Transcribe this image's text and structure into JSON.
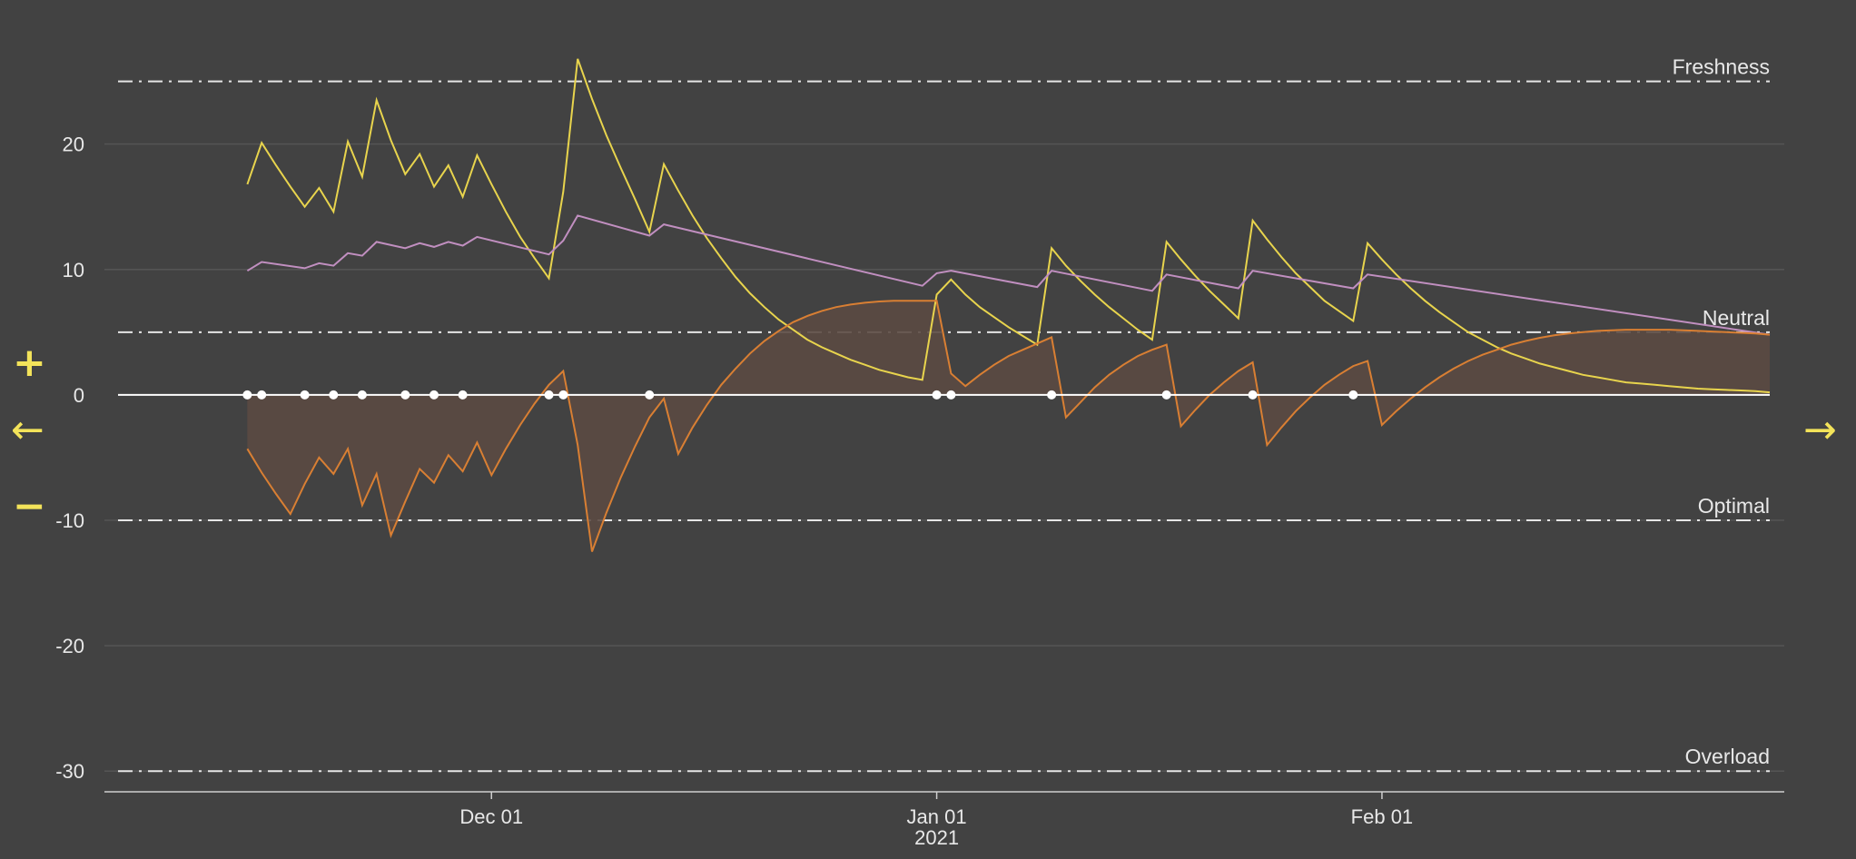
{
  "controls": {
    "zoom_in": "+",
    "zoom_out": "−",
    "previous": "←",
    "next": "→"
  },
  "colors": {
    "background": "#424242",
    "form": "#e8d44d",
    "fitness": "#c18fc0",
    "fatigue": "#d97f33",
    "area_fill": "#5b4a43",
    "baseline": "#ffffff",
    "grid": "#555555",
    "text": "#e8e8e8"
  },
  "chart_data": {
    "type": "line",
    "title": "",
    "xlabel": "",
    "ylabel": "",
    "xlim": [
      "2020-11-05",
      "2021-02-28"
    ],
    "ylim": [
      -31,
      27
    ],
    "yticks": [
      20,
      10,
      0,
      -10,
      -20,
      -30
    ],
    "xticks": [
      {
        "date": "2020-12-01",
        "label": "Dec 01",
        "sub": ""
      },
      {
        "date": "2021-01-01",
        "label": "Jan 01",
        "sub": "2021"
      },
      {
        "date": "2021-02-01",
        "label": "Feb 01",
        "sub": ""
      }
    ],
    "bands": [
      {
        "label": "Freshness",
        "value": 25
      },
      {
        "label": "Neutral",
        "value": 5
      },
      {
        "label": "Optimal",
        "value": -10
      },
      {
        "label": "Overload",
        "value": -30
      }
    ],
    "series": [
      {
        "key": "form",
        "points": [
          [
            "2020-11-14",
            16.8
          ],
          [
            "2020-11-15",
            20.1
          ],
          [
            "2020-11-16",
            18.3
          ],
          [
            "2020-11-17",
            16.6
          ],
          [
            "2020-11-18",
            15.0
          ],
          [
            "2020-11-19",
            16.5
          ],
          [
            "2020-11-20",
            14.6
          ],
          [
            "2020-11-21",
            20.2
          ],
          [
            "2020-11-22",
            17.4
          ],
          [
            "2020-11-23",
            23.5
          ],
          [
            "2020-11-24",
            20.3
          ],
          [
            "2020-11-25",
            17.6
          ],
          [
            "2020-11-26",
            19.2
          ],
          [
            "2020-11-27",
            16.6
          ],
          [
            "2020-11-28",
            18.3
          ],
          [
            "2020-11-29",
            15.8
          ],
          [
            "2020-11-30",
            19.1
          ],
          [
            "2020-12-01",
            16.8
          ],
          [
            "2020-12-02",
            14.6
          ],
          [
            "2020-12-03",
            12.6
          ],
          [
            "2020-12-04",
            10.9
          ],
          [
            "2020-12-05",
            9.3
          ],
          [
            "2020-12-06",
            16.2
          ],
          [
            "2020-12-07",
            26.8
          ],
          [
            "2020-12-08",
            23.6
          ],
          [
            "2020-12-09",
            20.7
          ],
          [
            "2020-12-10",
            18.1
          ],
          [
            "2020-12-11",
            15.6
          ],
          [
            "2020-12-12",
            13.0
          ],
          [
            "2020-12-13",
            18.4
          ],
          [
            "2020-12-14",
            16.3
          ],
          [
            "2020-12-15",
            14.3
          ],
          [
            "2020-12-16",
            12.5
          ],
          [
            "2020-12-17",
            10.9
          ],
          [
            "2020-12-18",
            9.4
          ],
          [
            "2020-12-19",
            8.1
          ],
          [
            "2020-12-20",
            7.0
          ],
          [
            "2020-12-21",
            6.0
          ],
          [
            "2020-12-22",
            5.2
          ],
          [
            "2020-12-23",
            4.4
          ],
          [
            "2020-12-24",
            3.8
          ],
          [
            "2020-12-25",
            3.3
          ],
          [
            "2020-12-26",
            2.8
          ],
          [
            "2020-12-27",
            2.4
          ],
          [
            "2020-12-28",
            2.0
          ],
          [
            "2020-12-29",
            1.7
          ],
          [
            "2020-12-30",
            1.4
          ],
          [
            "2020-12-31",
            1.2
          ],
          [
            "2021-01-01",
            8.0
          ],
          [
            "2021-01-02",
            9.2
          ],
          [
            "2021-01-03",
            8.0
          ],
          [
            "2021-01-04",
            7.0
          ],
          [
            "2021-01-05",
            6.2
          ],
          [
            "2021-01-06",
            5.4
          ],
          [
            "2021-01-07",
            4.7
          ],
          [
            "2021-01-08",
            4.0
          ],
          [
            "2021-01-09",
            11.7
          ],
          [
            "2021-01-10",
            10.3
          ],
          [
            "2021-01-11",
            9.1
          ],
          [
            "2021-01-12",
            8.0
          ],
          [
            "2021-01-13",
            7.0
          ],
          [
            "2021-01-14",
            6.1
          ],
          [
            "2021-01-15",
            5.2
          ],
          [
            "2021-01-16",
            4.4
          ],
          [
            "2021-01-17",
            12.2
          ],
          [
            "2021-01-18",
            10.8
          ],
          [
            "2021-01-19",
            9.5
          ],
          [
            "2021-01-20",
            8.3
          ],
          [
            "2021-01-21",
            7.2
          ],
          [
            "2021-01-22",
            6.1
          ],
          [
            "2021-01-23",
            13.9
          ],
          [
            "2021-01-24",
            12.4
          ],
          [
            "2021-01-25",
            11.0
          ],
          [
            "2021-01-26",
            9.7
          ],
          [
            "2021-01-27",
            8.6
          ],
          [
            "2021-01-28",
            7.5
          ],
          [
            "2021-01-29",
            6.7
          ],
          [
            "2021-01-30",
            5.9
          ],
          [
            "2021-01-31",
            12.1
          ],
          [
            "2021-02-01",
            10.8
          ],
          [
            "2021-02-02",
            9.6
          ],
          [
            "2021-02-03",
            8.5
          ],
          [
            "2021-02-04",
            7.5
          ],
          [
            "2021-02-05",
            6.6
          ],
          [
            "2021-02-06",
            5.8
          ],
          [
            "2021-02-07",
            5.0
          ],
          [
            "2021-02-08",
            4.4
          ],
          [
            "2021-02-09",
            3.8
          ],
          [
            "2021-02-10",
            3.3
          ],
          [
            "2021-02-11",
            2.9
          ],
          [
            "2021-02-12",
            2.5
          ],
          [
            "2021-02-13",
            2.2
          ],
          [
            "2021-02-14",
            1.9
          ],
          [
            "2021-02-15",
            1.6
          ],
          [
            "2021-02-16",
            1.4
          ],
          [
            "2021-02-17",
            1.2
          ],
          [
            "2021-02-18",
            1.0
          ],
          [
            "2021-02-19",
            0.9
          ],
          [
            "2021-02-20",
            0.8
          ],
          [
            "2021-02-21",
            0.7
          ],
          [
            "2021-02-22",
            0.6
          ],
          [
            "2021-02-23",
            0.5
          ],
          [
            "2021-02-24",
            0.45
          ],
          [
            "2021-02-25",
            0.4
          ],
          [
            "2021-02-26",
            0.35
          ],
          [
            "2021-02-27",
            0.3
          ],
          [
            "2021-02-28",
            0.2
          ]
        ]
      },
      {
        "key": "fitness",
        "points": [
          [
            "2020-11-14",
            9.9
          ],
          [
            "2020-11-15",
            10.6
          ],
          [
            "2020-11-18",
            10.1
          ],
          [
            "2020-11-19",
            10.5
          ],
          [
            "2020-11-20",
            10.3
          ],
          [
            "2020-11-21",
            11.3
          ],
          [
            "2020-11-22",
            11.1
          ],
          [
            "2020-11-23",
            12.2
          ],
          [
            "2020-11-25",
            11.7
          ],
          [
            "2020-11-26",
            12.1
          ],
          [
            "2020-11-27",
            11.8
          ],
          [
            "2020-11-28",
            12.2
          ],
          [
            "2020-11-29",
            11.9
          ],
          [
            "2020-11-30",
            12.6
          ],
          [
            "2020-12-05",
            11.2
          ],
          [
            "2020-12-06",
            12.3
          ],
          [
            "2020-12-07",
            14.3
          ],
          [
            "2020-12-12",
            12.7
          ],
          [
            "2020-12-13",
            13.6
          ],
          [
            "2020-12-31",
            8.7
          ],
          [
            "2021-01-01",
            9.7
          ],
          [
            "2021-01-02",
            9.9
          ],
          [
            "2021-01-08",
            8.6
          ],
          [
            "2021-01-09",
            9.9
          ],
          [
            "2021-01-16",
            8.3
          ],
          [
            "2021-01-17",
            9.6
          ],
          [
            "2021-01-22",
            8.5
          ],
          [
            "2021-01-23",
            9.9
          ],
          [
            "2021-01-30",
            8.5
          ],
          [
            "2021-01-31",
            9.6
          ],
          [
            "2021-02-28",
            4.8
          ]
        ]
      },
      {
        "key": "fatigue",
        "points": [
          [
            "2020-11-14",
            -4.3
          ],
          [
            "2020-11-15",
            -6.2
          ],
          [
            "2020-11-16",
            -7.9
          ],
          [
            "2020-11-17",
            -9.5
          ],
          [
            "2020-11-18",
            -7.1
          ],
          [
            "2020-11-19",
            -5.0
          ],
          [
            "2020-11-20",
            -6.3
          ],
          [
            "2020-11-21",
            -4.3
          ],
          [
            "2020-11-22",
            -8.8
          ],
          [
            "2020-11-23",
            -6.3
          ],
          [
            "2020-11-24",
            -11.2
          ],
          [
            "2020-11-25",
            -8.5
          ],
          [
            "2020-11-26",
            -5.9
          ],
          [
            "2020-11-27",
            -7.0
          ],
          [
            "2020-11-28",
            -4.8
          ],
          [
            "2020-11-29",
            -6.1
          ],
          [
            "2020-11-30",
            -3.8
          ],
          [
            "2020-12-01",
            -6.4
          ],
          [
            "2020-12-02",
            -4.3
          ],
          [
            "2020-12-03",
            -2.4
          ],
          [
            "2020-12-04",
            -0.7
          ],
          [
            "2020-12-05",
            0.8
          ],
          [
            "2020-12-06",
            1.9
          ],
          [
            "2020-12-07",
            -4.0
          ],
          [
            "2020-12-08",
            -12.5
          ],
          [
            "2020-12-09",
            -9.4
          ],
          [
            "2020-12-10",
            -6.6
          ],
          [
            "2020-12-11",
            -4.1
          ],
          [
            "2020-12-12",
            -1.8
          ],
          [
            "2020-12-13",
            -0.3
          ],
          [
            "2020-12-14",
            -4.7
          ],
          [
            "2020-12-15",
            -2.6
          ],
          [
            "2020-12-16",
            -0.8
          ],
          [
            "2020-12-17",
            0.8
          ],
          [
            "2020-12-18",
            2.1
          ],
          [
            "2020-12-19",
            3.3
          ],
          [
            "2020-12-20",
            4.3
          ],
          [
            "2020-12-21",
            5.1
          ],
          [
            "2020-12-22",
            5.8
          ],
          [
            "2020-12-23",
            6.3
          ],
          [
            "2020-12-24",
            6.7
          ],
          [
            "2020-12-25",
            7.0
          ],
          [
            "2020-12-26",
            7.2
          ],
          [
            "2020-12-27",
            7.35
          ],
          [
            "2020-12-28",
            7.45
          ],
          [
            "2020-12-29",
            7.5
          ],
          [
            "2020-12-30",
            7.5
          ],
          [
            "2020-12-31",
            7.5
          ],
          [
            "2021-01-01",
            7.5
          ],
          [
            "2021-01-02",
            1.7
          ],
          [
            "2021-01-03",
            0.7
          ],
          [
            "2021-01-04",
            1.6
          ],
          [
            "2021-01-05",
            2.4
          ],
          [
            "2021-01-06",
            3.1
          ],
          [
            "2021-01-07",
            3.6
          ],
          [
            "2021-01-08",
            4.1
          ],
          [
            "2021-01-09",
            4.6
          ],
          [
            "2021-01-10",
            -1.8
          ],
          [
            "2021-01-11",
            -0.6
          ],
          [
            "2021-01-12",
            0.6
          ],
          [
            "2021-01-13",
            1.6
          ],
          [
            "2021-01-14",
            2.4
          ],
          [
            "2021-01-15",
            3.1
          ],
          [
            "2021-01-16",
            3.6
          ],
          [
            "2021-01-17",
            4.0
          ],
          [
            "2021-01-18",
            -2.5
          ],
          [
            "2021-01-19",
            -1.2
          ],
          [
            "2021-01-20",
            0.0
          ],
          [
            "2021-01-21",
            1.0
          ],
          [
            "2021-01-22",
            1.9
          ],
          [
            "2021-01-23",
            2.6
          ],
          [
            "2021-01-24",
            -4.0
          ],
          [
            "2021-01-25",
            -2.6
          ],
          [
            "2021-01-26",
            -1.3
          ],
          [
            "2021-01-27",
            -0.2
          ],
          [
            "2021-01-28",
            0.8
          ],
          [
            "2021-01-29",
            1.6
          ],
          [
            "2021-01-30",
            2.3
          ],
          [
            "2021-01-31",
            2.7
          ],
          [
            "2021-02-01",
            -2.4
          ],
          [
            "2021-02-02",
            -1.3
          ],
          [
            "2021-02-03",
            -0.3
          ],
          [
            "2021-02-04",
            0.6
          ],
          [
            "2021-02-05",
            1.4
          ],
          [
            "2021-02-06",
            2.1
          ],
          [
            "2021-02-07",
            2.7
          ],
          [
            "2021-02-08",
            3.2
          ],
          [
            "2021-02-09",
            3.6
          ],
          [
            "2021-02-10",
            4.0
          ],
          [
            "2021-02-11",
            4.3
          ],
          [
            "2021-02-12",
            4.55
          ],
          [
            "2021-02-13",
            4.75
          ],
          [
            "2021-02-14",
            4.9
          ],
          [
            "2021-02-15",
            5.0
          ],
          [
            "2021-02-16",
            5.1
          ],
          [
            "2021-02-17",
            5.15
          ],
          [
            "2021-02-18",
            5.2
          ],
          [
            "2021-02-19",
            5.2
          ],
          [
            "2021-02-20",
            5.2
          ],
          [
            "2021-02-21",
            5.2
          ],
          [
            "2021-02-22",
            5.15
          ],
          [
            "2021-02-23",
            5.1
          ],
          [
            "2021-02-24",
            5.05
          ],
          [
            "2021-02-25",
            5.0
          ],
          [
            "2021-02-26",
            4.95
          ],
          [
            "2021-02-27",
            4.9
          ],
          [
            "2021-02-28",
            4.8
          ]
        ]
      }
    ],
    "activity_days": [
      "2020-11-14",
      "2020-11-15",
      "2020-11-18",
      "2020-11-20",
      "2020-11-22",
      "2020-11-25",
      "2020-11-27",
      "2020-11-29",
      "2020-12-05",
      "2020-12-06",
      "2020-12-12",
      "2021-01-01",
      "2021-01-02",
      "2021-01-09",
      "2021-01-17",
      "2021-01-23",
      "2021-01-30"
    ]
  }
}
